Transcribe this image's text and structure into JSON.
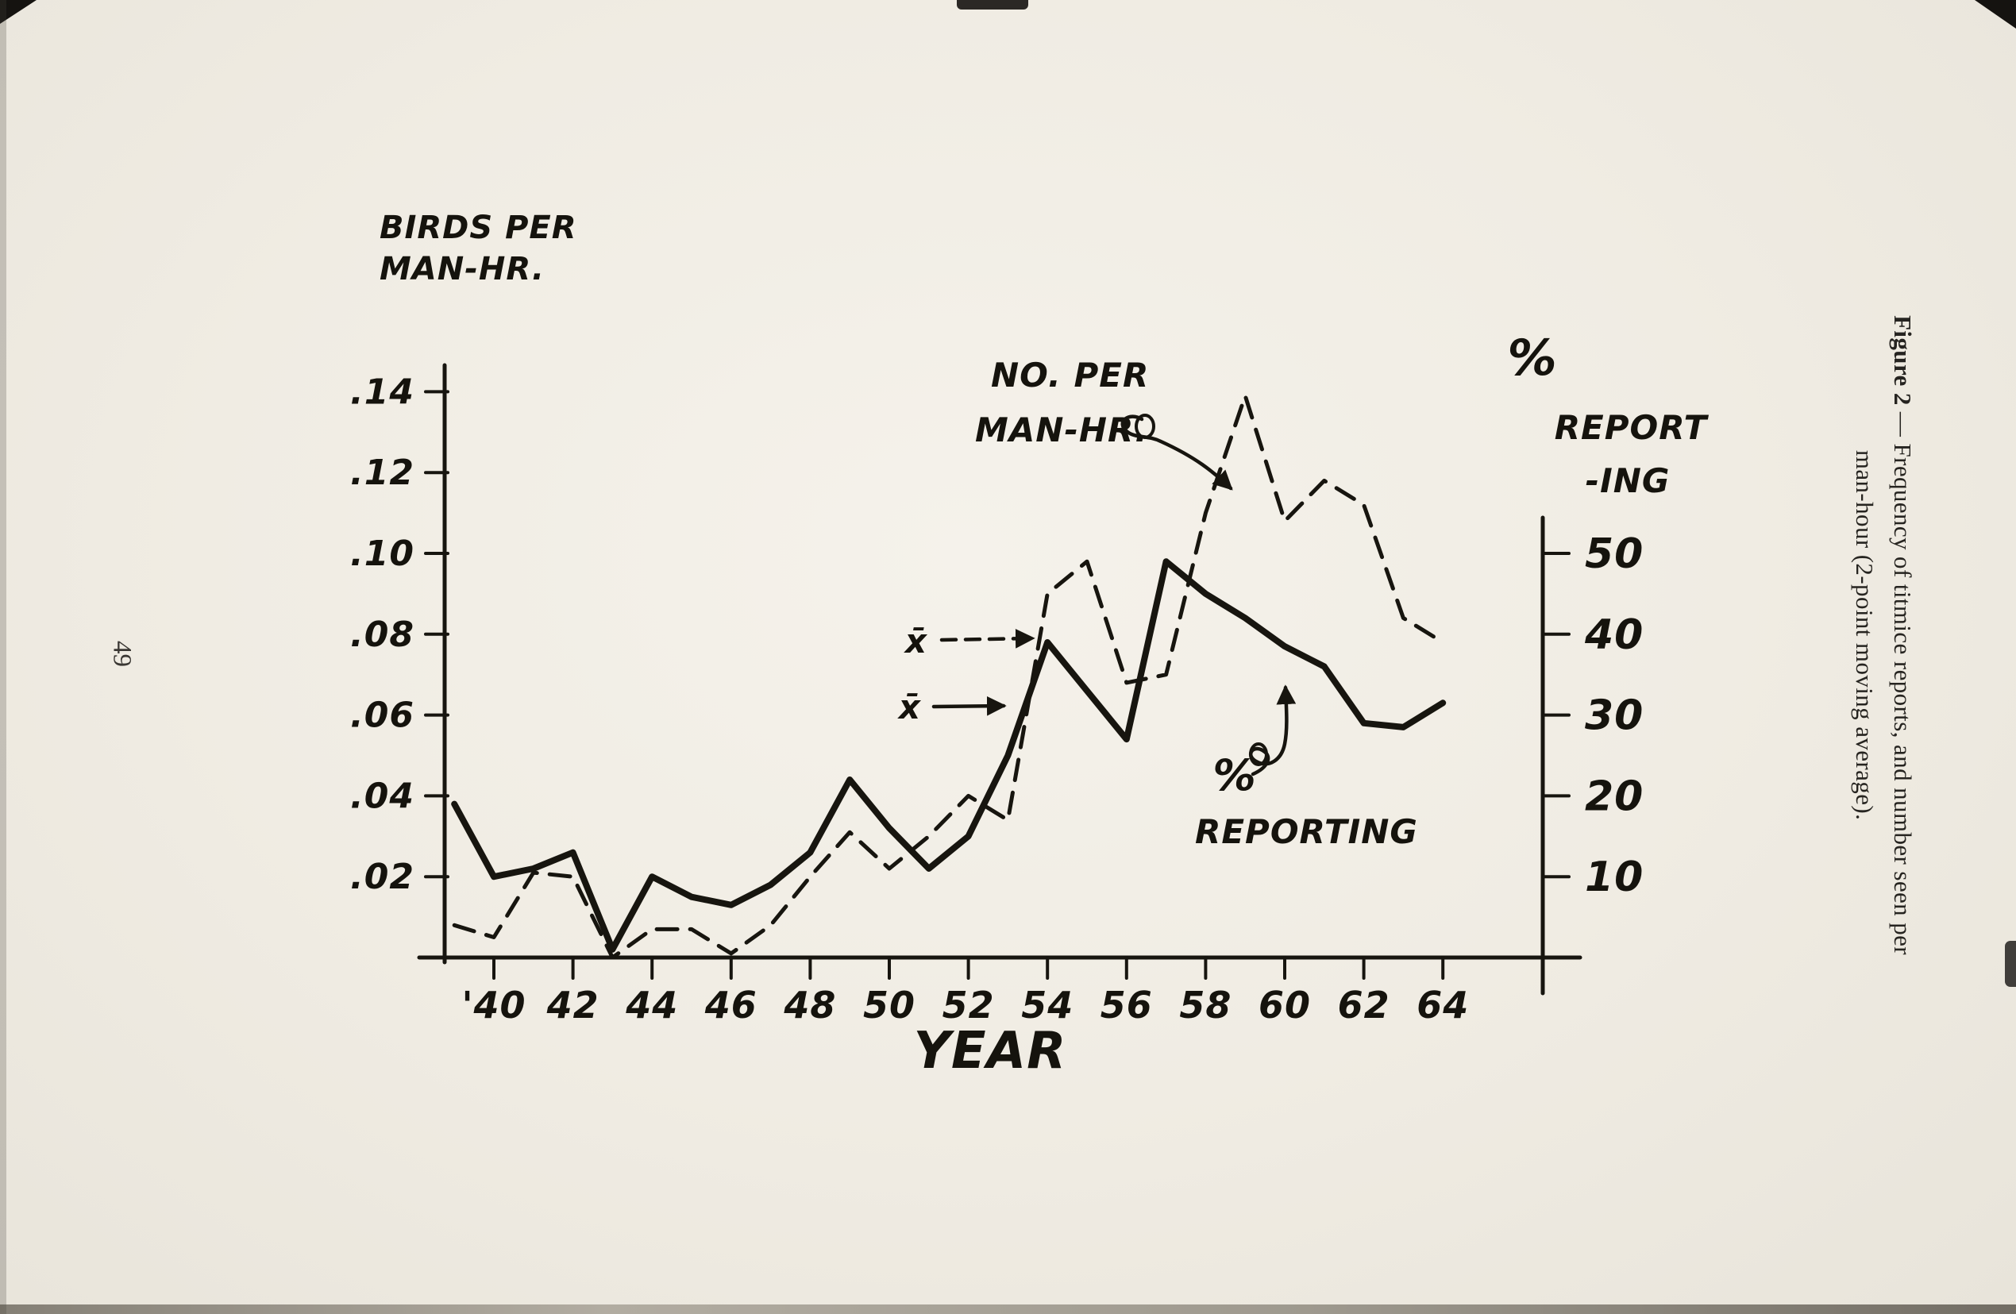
{
  "page": {
    "number": "49"
  },
  "caption": {
    "figure_label": "Figure 2",
    "line1_rest": " — Frequency of titmice reports, and number seen per",
    "line2": "man-hour (2-point moving average)."
  },
  "chart_data": {
    "type": "line",
    "title": "Figure 2 — Frequency of titmice reports, and number seen per man-hour (2-point moving average).",
    "left_axis_label_lines": [
      "BIRDS PER",
      "MAN-HR."
    ],
    "right_axis_label_lines": [
      "%",
      "REPORT",
      "-ING"
    ],
    "xlabel": "YEAR",
    "x_range": [
      1939,
      1964
    ],
    "left_range": [
      0,
      0.14
    ],
    "right_range": [
      0,
      50
    ],
    "grid": false,
    "x": [
      1939,
      1940,
      1941,
      1942,
      1943,
      1944,
      1945,
      1946,
      1947,
      1948,
      1949,
      1950,
      1951,
      1952,
      1953,
      1954,
      1955,
      1956,
      1957,
      1958,
      1959,
      1960,
      1961,
      1962,
      1963,
      1964
    ],
    "series": [
      {
        "name": "NO. PER MAN-HR.",
        "axis": "left",
        "style": "dashed",
        "values": [
          0.008,
          0.005,
          0.021,
          0.02,
          0.0,
          0.007,
          0.007,
          0.001,
          0.008,
          0.02,
          0.031,
          0.022,
          0.03,
          0.04,
          0.034,
          0.09,
          0.098,
          0.068,
          0.07,
          0.11,
          0.139,
          0.108,
          0.118,
          0.112,
          0.084,
          0.078
        ]
      },
      {
        "name": "% REPORTING",
        "axis": "right",
        "style": "solid",
        "values": [
          19,
          10,
          11,
          13,
          1,
          10,
          7.5,
          6.5,
          9,
          13,
          22,
          16,
          11,
          15,
          25,
          39,
          33,
          27,
          49,
          45,
          42,
          38.5,
          36,
          29,
          28.5,
          31.5
        ]
      }
    ],
    "left_ticks": [
      {
        "label": ".14",
        "value": 0.14
      },
      {
        "label": ".12",
        "value": 0.12
      },
      {
        "label": ".10",
        "value": 0.1
      },
      {
        "label": ".08",
        "value": 0.08
      },
      {
        "label": ".06",
        "value": 0.06
      },
      {
        "label": ".04",
        "value": 0.04
      },
      {
        "label": ".02",
        "value": 0.02
      }
    ],
    "right_ticks": [
      {
        "label": "50",
        "value": 50
      },
      {
        "label": "40",
        "value": 40
      },
      {
        "label": "30",
        "value": 30
      },
      {
        "label": "20",
        "value": 20
      },
      {
        "label": "10",
        "value": 10
      }
    ],
    "x_ticks": [
      {
        "label": "'40",
        "year": 1940
      },
      {
        "label": "42",
        "year": 1942
      },
      {
        "label": "44",
        "year": 1944
      },
      {
        "label": "46",
        "year": 1946
      },
      {
        "label": "48",
        "year": 1948
      },
      {
        "label": "50",
        "year": 1950
      },
      {
        "label": "52",
        "year": 1952
      },
      {
        "label": "54",
        "year": 1954
      },
      {
        "label": "56",
        "year": 1956
      },
      {
        "label": "58",
        "year": 1958
      },
      {
        "label": "60",
        "year": 1960
      },
      {
        "label": "62",
        "year": 1962
      },
      {
        "label": "64",
        "year": 1964
      }
    ],
    "annotations": {
      "no_per_line1": "NO. PER",
      "no_per_line2": "MAN-HR.",
      "xbar_dashed": "x̄",
      "xbar_solid": "x̄",
      "pct_symbol": "%",
      "reporting": "REPORTING"
    },
    "legend_position": "inline-annotations",
    "ink_color": "#17150f",
    "paper_color": "#f0ece3"
  }
}
